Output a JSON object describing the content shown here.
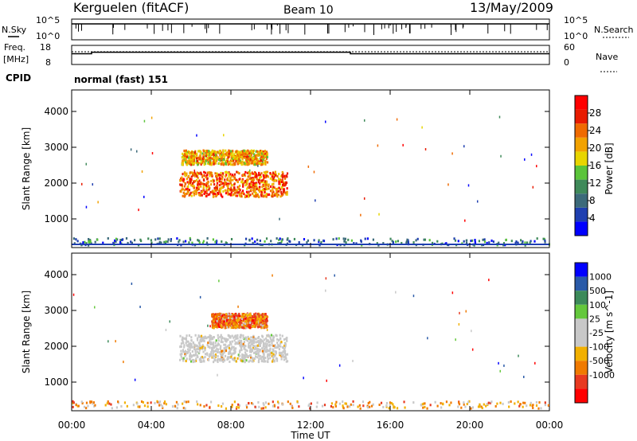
{
  "header": {
    "station": "Kerguelen (fitACF)",
    "beam": "Beam 10",
    "date": "13/May/2009"
  },
  "left_labels": {
    "nsky": "N.Sky",
    "freq": "Freq.",
    "freq_unit": "[MHz]",
    "cpid": "CPID"
  },
  "right_labels": {
    "nsearch": "N.Search",
    "nave": "Nave"
  },
  "cpid_text": "normal (fast) 151",
  "nsky_ticks": [
    "10^5",
    "10^0"
  ],
  "nsearch_ticks": [
    "10^5",
    "10^0"
  ],
  "freq_ticks": [
    "18",
    "8"
  ],
  "nave_ticks": [
    "60",
    "0"
  ],
  "colors": {
    "power_scale": [
      "#0000ff",
      "#1f3fb0",
      "#3c6a7a",
      "#3f8a5a",
      "#5bc43a",
      "#e8d500",
      "#f2a200",
      "#f06a00",
      "#e81b00",
      "#ff0000"
    ],
    "velocity_scale": [
      "#ff0000",
      "#e83a20",
      "#f07a00",
      "#f2b000",
      "#c8c8c8",
      "#c8c8c8",
      "#64c83c",
      "#3c8a5a",
      "#2a5aa8",
      "#0000ff"
    ],
    "velocity_ground": "#c8c8c8"
  },
  "chart_data": [
    {
      "type": "line",
      "name": "sounding-summary",
      "x_label": "Time UT",
      "x_range_hours": [
        0,
        24
      ],
      "freq_mhz": {
        "ylim": [
          8,
          18
        ],
        "points": [
          [
            0,
            13.6
          ],
          [
            1,
            13.6
          ],
          [
            1,
            14.4
          ],
          [
            14,
            14.4
          ],
          [
            14,
            13.6
          ],
          [
            24,
            13.6
          ]
        ]
      },
      "nave": {
        "ylim": [
          0,
          60
        ],
        "points": [
          [
            0,
            40
          ],
          [
            24,
            40
          ]
        ]
      }
    },
    {
      "type": "heatmap",
      "name": "power",
      "title": "Power [dB]",
      "xlabel": "Time UT",
      "ylabel": "Slant Range [km]",
      "xlim": [
        0,
        24
      ],
      "ylim": [
        200,
        4600
      ],
      "x_tick_labels": [
        "00:00",
        "04:00",
        "08:00",
        "12:00",
        "16:00",
        "20:00",
        "00:00"
      ],
      "x_ticks_hours": [
        0,
        4,
        8,
        12,
        16,
        20,
        24
      ],
      "y_ticks": [
        1000,
        2000,
        3000,
        4000
      ],
      "colorbar_ticks": [
        4,
        8,
        12,
        16,
        20,
        24,
        28
      ],
      "colorbar_range": [
        0,
        32
      ],
      "scatter_regions": [
        {
          "t0": 5.5,
          "t1": 9.8,
          "r0": 2500,
          "r1": 2900,
          "level": 6
        },
        {
          "t0": 5.4,
          "t1": 10.8,
          "r0": 1600,
          "r1": 2300,
          "level": 7
        },
        {
          "t0": 0.0,
          "t1": 24.0,
          "r0": 250,
          "r1": 450,
          "level": 2
        }
      ]
    },
    {
      "type": "heatmap",
      "name": "velocity",
      "title": "Velocity [m s^-1]",
      "xlabel": "Time UT",
      "ylabel": "Slant Range [km]",
      "xlim": [
        0,
        24
      ],
      "ylim": [
        200,
        4600
      ],
      "x_tick_labels": [
        "00:00",
        "04:00",
        "08:00",
        "12:00",
        "16:00",
        "20:00",
        "00:00"
      ],
      "x_ticks_hours": [
        0,
        4,
        8,
        12,
        16,
        20,
        24
      ],
      "y_ticks": [
        1000,
        2000,
        3000,
        4000
      ],
      "colorbar_tick_labels": [
        "1000",
        "500",
        "100",
        "25",
        "-25",
        "-100",
        "-500",
        "-1000"
      ],
      "scatter_regions": [
        {
          "t0": 7.0,
          "t1": 9.8,
          "r0": 2500,
          "r1": 2900,
          "level": 2
        },
        {
          "t0": 5.4,
          "t1": 10.8,
          "r0": 1550,
          "r1": 2300,
          "level": 4
        },
        {
          "t0": 0.0,
          "t1": 24.0,
          "r0": 250,
          "r1": 450,
          "level": 3
        }
      ]
    }
  ]
}
